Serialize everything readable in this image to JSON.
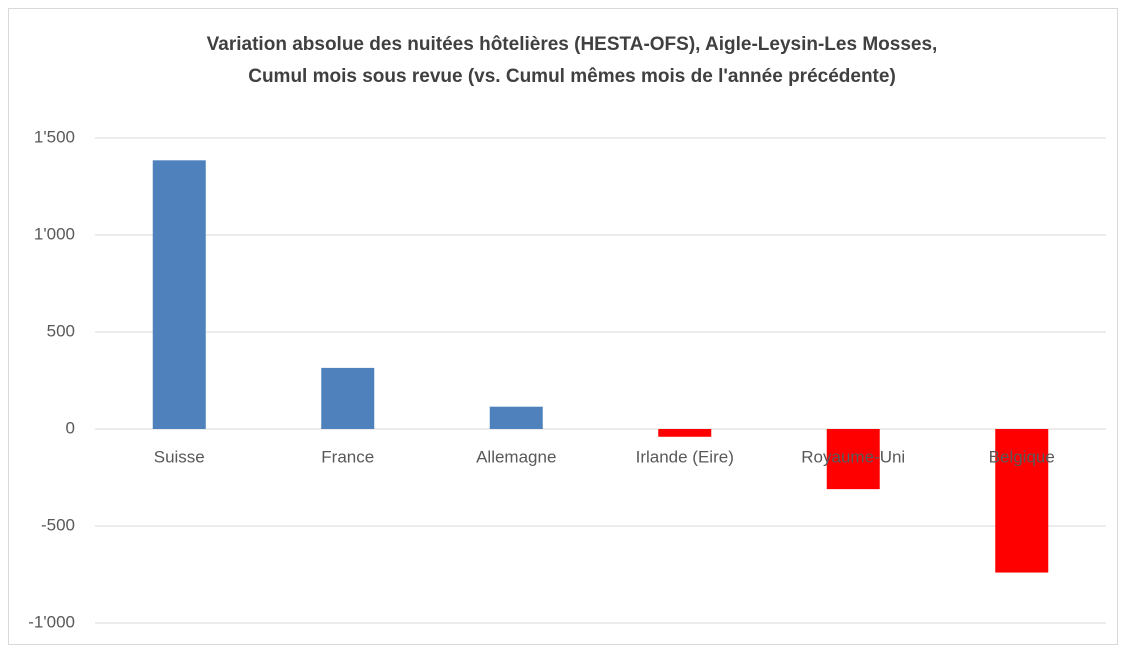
{
  "chart_data": {
    "type": "bar",
    "title": [
      "Variation absolue des nuitées hôtelières (HESTA-OFS), Aigle-Leysin-Les Mosses,",
      "Cumul mois sous revue (vs. Cumul mêmes mois de l'année précédente)"
    ],
    "categories": [
      "Suisse",
      "France",
      "Allemagne",
      "Irlande (Eire)",
      "Royaume-Uni",
      "Belgique"
    ],
    "values": [
      1385,
      315,
      115,
      -40,
      -310,
      -740
    ],
    "color": "#4f81bd",
    "negative_color": "#ff0000",
    "ylim": [
      -1000,
      1500
    ],
    "yticks": [
      {
        "value": -1000,
        "label": "-1'000"
      },
      -500,
      0,
      500,
      {
        "value": 1000,
        "label": "1'000"
      },
      {
        "value": 1500,
        "label": "1'500"
      }
    ],
    "grid": true
  }
}
